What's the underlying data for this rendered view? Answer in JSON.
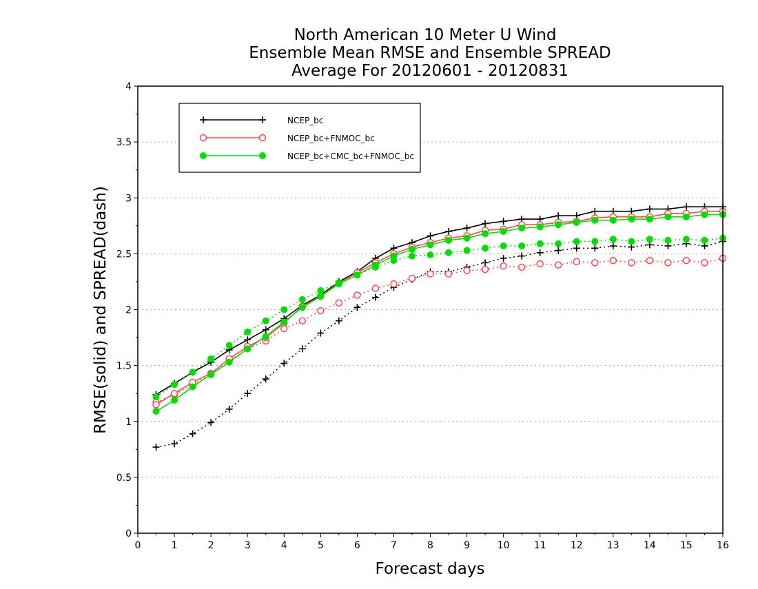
{
  "chart_data": {
    "type": "line",
    "title": [
      "North American 10 Meter U Wind",
      "Ensemble Mean RMSE and Ensemble SPREAD",
      "Average For 20120601 - 20120831"
    ],
    "xlabel": "Forecast days",
    "ylabel": "RMSE(solid) and SPREAD(dash)",
    "xlim": [
      0,
      16
    ],
    "ylim": [
      0,
      4
    ],
    "xticks": [
      "0",
      "1",
      "2",
      "3",
      "4",
      "5",
      "6",
      "7",
      "8",
      "9",
      "10",
      "11",
      "12",
      "13",
      "14",
      "15",
      "16"
    ],
    "yticks": [
      "0",
      "0.5",
      "1",
      "1.5",
      "2",
      "2.5",
      "3",
      "3.5",
      "4"
    ],
    "grid": "horizontal dotted",
    "legend_position": "top-left",
    "x": [
      0.5,
      1,
      1.5,
      2,
      2.5,
      3,
      3.5,
      4,
      4.5,
      5,
      5.5,
      6,
      6.5,
      7,
      7.5,
      8,
      8.5,
      9,
      9.5,
      10,
      10.5,
      11,
      11.5,
      12,
      12.5,
      13,
      13.5,
      14,
      14.5,
      15,
      15.5,
      16
    ],
    "series": [
      {
        "name": "NCEP_bc",
        "color": "#000000",
        "marker": "plus",
        "rmse": [
          1.24,
          1.34,
          1.44,
          1.53,
          1.64,
          1.73,
          1.82,
          1.92,
          2.04,
          2.13,
          2.25,
          2.34,
          2.46,
          2.55,
          2.6,
          2.66,
          2.7,
          2.73,
          2.77,
          2.79,
          2.81,
          2.81,
          2.84,
          2.84,
          2.88,
          2.88,
          2.88,
          2.9,
          2.9,
          2.92,
          2.92,
          2.92
        ],
        "spread": [
          0.77,
          0.8,
          0.89,
          0.99,
          1.11,
          1.25,
          1.38,
          1.52,
          1.65,
          1.79,
          1.9,
          2.02,
          2.11,
          2.2,
          2.27,
          2.34,
          2.34,
          2.38,
          2.42,
          2.46,
          2.48,
          2.51,
          2.53,
          2.55,
          2.55,
          2.57,
          2.56,
          2.58,
          2.57,
          2.59,
          2.57,
          2.61
        ]
      },
      {
        "name": "NCEP_bc+FNMOC_bc",
        "color": "#ff4848",
        "marker": "open-circle",
        "rmse": [
          1.15,
          1.25,
          1.35,
          1.43,
          1.56,
          1.67,
          1.75,
          1.88,
          2.03,
          2.12,
          2.24,
          2.33,
          2.42,
          2.5,
          2.56,
          2.6,
          2.64,
          2.66,
          2.71,
          2.72,
          2.76,
          2.76,
          2.78,
          2.79,
          2.82,
          2.83,
          2.83,
          2.83,
          2.86,
          2.86,
          2.88,
          2.88
        ],
        "spread": [
          1.17,
          1.24,
          1.33,
          1.42,
          1.54,
          1.65,
          1.72,
          1.83,
          1.9,
          1.99,
          2.06,
          2.13,
          2.19,
          2.23,
          2.28,
          2.32,
          2.32,
          2.35,
          2.36,
          2.39,
          2.38,
          2.41,
          2.4,
          2.43,
          2.42,
          2.44,
          2.42,
          2.44,
          2.42,
          2.44,
          2.42,
          2.46
        ]
      },
      {
        "name": "NCEP_bc+CMC_bc+FNMOC_bc",
        "color": "#00dd00",
        "marker": "filled-circle",
        "rmse": [
          1.09,
          1.19,
          1.31,
          1.42,
          1.53,
          1.65,
          1.76,
          1.89,
          2.02,
          2.12,
          2.23,
          2.31,
          2.4,
          2.48,
          2.54,
          2.58,
          2.62,
          2.64,
          2.68,
          2.7,
          2.73,
          2.74,
          2.76,
          2.78,
          2.8,
          2.8,
          2.81,
          2.81,
          2.83,
          2.83,
          2.85,
          2.85
        ],
        "spread": [
          1.22,
          1.33,
          1.44,
          1.56,
          1.68,
          1.8,
          1.9,
          2.0,
          2.09,
          2.17,
          2.24,
          2.31,
          2.38,
          2.44,
          2.48,
          2.49,
          2.51,
          2.53,
          2.55,
          2.57,
          2.57,
          2.59,
          2.59,
          2.61,
          2.61,
          2.63,
          2.61,
          2.63,
          2.62,
          2.63,
          2.62,
          2.64
        ]
      }
    ]
  }
}
